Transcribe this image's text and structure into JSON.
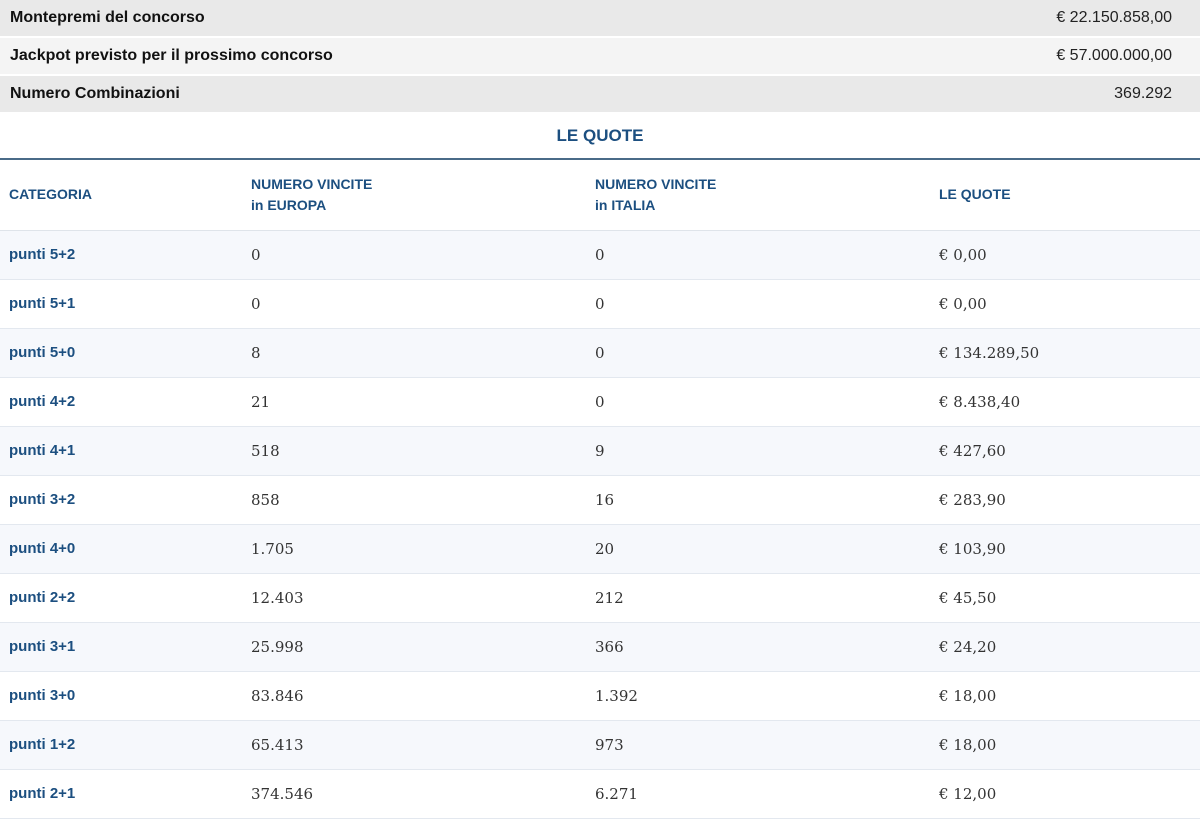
{
  "summary": [
    {
      "label": "Montepremi del concorso",
      "value": "€ 22.150.858,00"
    },
    {
      "label": "Jackpot previsto per il prossimo concorso",
      "value": "€ 57.000.000,00"
    },
    {
      "label": "Numero Combinazioni",
      "value": "369.292"
    }
  ],
  "section_title": "LE QUOTE",
  "table": {
    "headers": {
      "categoria": "CATEGORIA",
      "europa_line1": "NUMERO VINCITE",
      "europa_line2": "in EUROPA",
      "italia_line1": "NUMERO VINCITE",
      "italia_line2": "in ITALIA",
      "quote": "LE QUOTE"
    },
    "rows": [
      {
        "categoria": "punti 5+2",
        "europa": "0",
        "italia": "0",
        "quota": "€ 0,00"
      },
      {
        "categoria": "punti 5+1",
        "europa": "0",
        "italia": "0",
        "quota": "€ 0,00"
      },
      {
        "categoria": "punti 5+0",
        "europa": "8",
        "italia": "0",
        "quota": "€ 134.289,50"
      },
      {
        "categoria": "punti 4+2",
        "europa": "21",
        "italia": "0",
        "quota": "€ 8.438,40"
      },
      {
        "categoria": "punti 4+1",
        "europa": "518",
        "italia": "9",
        "quota": "€ 427,60"
      },
      {
        "categoria": "punti 3+2",
        "europa": "858",
        "italia": "16",
        "quota": "€ 283,90"
      },
      {
        "categoria": "punti 4+0",
        "europa": "1.705",
        "italia": "20",
        "quota": "€ 103,90"
      },
      {
        "categoria": "punti 2+2",
        "europa": "12.403",
        "italia": "212",
        "quota": "€ 45,50"
      },
      {
        "categoria": "punti 3+1",
        "europa": "25.998",
        "italia": "366",
        "quota": "€ 24,20"
      },
      {
        "categoria": "punti 3+0",
        "europa": "83.846",
        "italia": "1.392",
        "quota": "€ 18,00"
      },
      {
        "categoria": "punti 1+2",
        "europa": "65.413",
        "italia": "973",
        "quota": "€ 18,00"
      },
      {
        "categoria": "punti 2+1",
        "europa": "374.546",
        "italia": "6.271",
        "quota": "€ 12,00"
      }
    ]
  }
}
